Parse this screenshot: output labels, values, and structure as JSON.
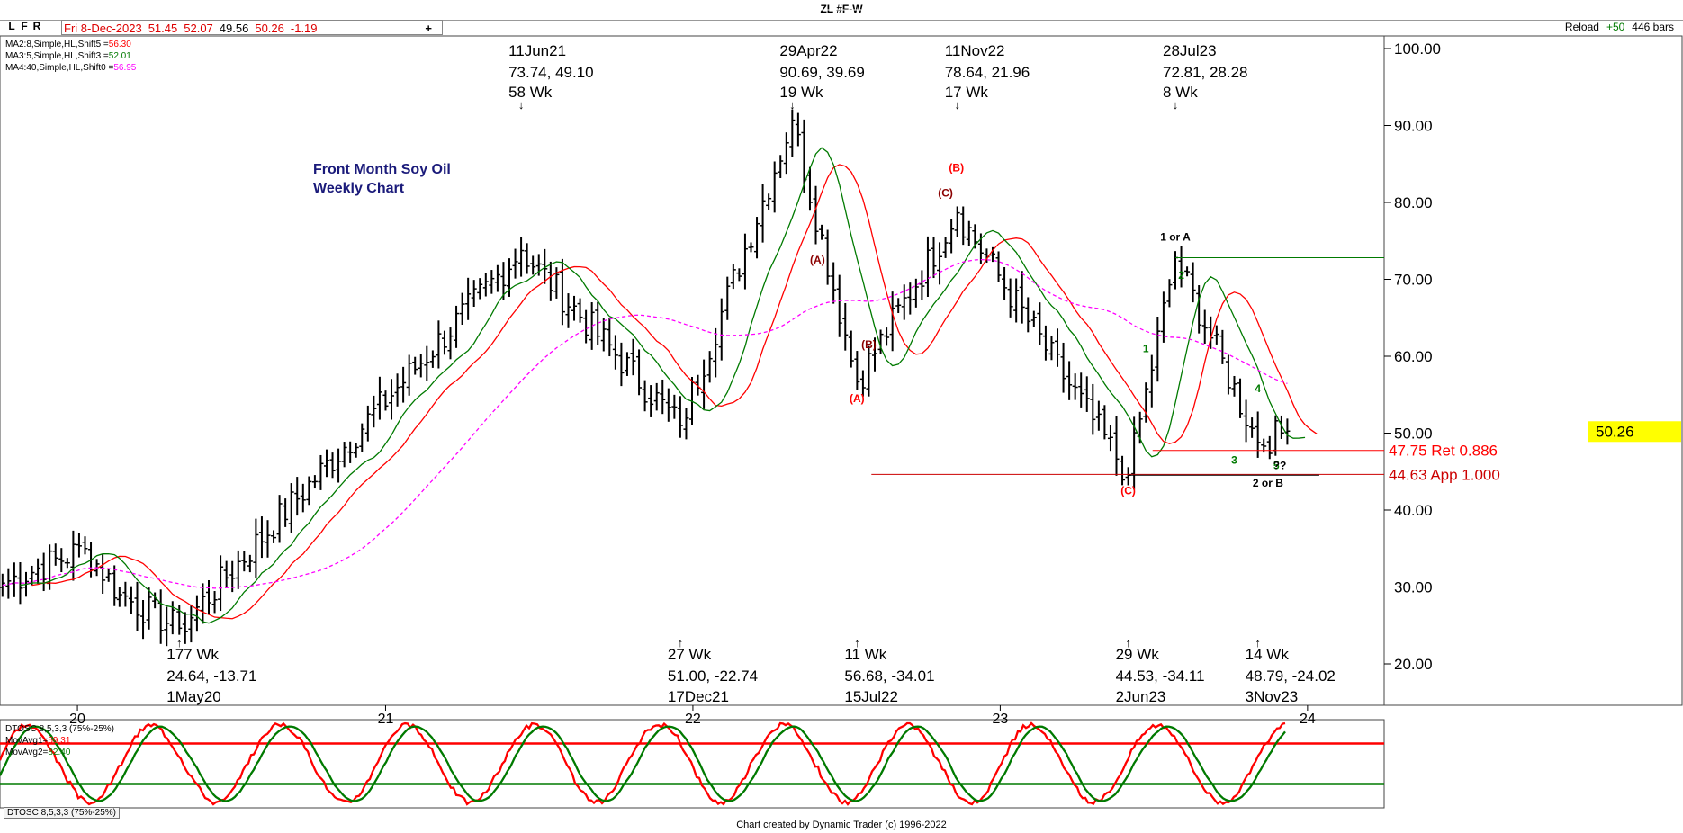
{
  "header": {
    "title": "ZL #F-W",
    "lfr": [
      "L",
      "F",
      "R"
    ],
    "quote": {
      "date": "Fri 8-Dec-2023",
      "open": "51.45",
      "high": "52.07",
      "low": "49.56",
      "close": "50.26",
      "change": "-1.19"
    },
    "reload_label": "Reload",
    "reload_value": "+50",
    "bars": "446 bars"
  },
  "ma_legend": [
    {
      "label": "MA2:8,Simple,HL,Shift5 =",
      "value": "56.30",
      "color": "#ff0000"
    },
    {
      "label": "MA3:5,Simple,HL,Shift3 =",
      "value": "52.01",
      "color": "#007a00"
    },
    {
      "label": "MA4:40,Simple,HL,Shift0 =",
      "value": "56.95",
      "color": "#ff00ff"
    }
  ],
  "chart_data": [
    {
      "type": "ohlc",
      "title": "ZL #F-W",
      "subtitle": "Front Month Soy Oil\nWeekly Chart",
      "x_tick_labels": [
        "20",
        "21",
        "22",
        "23",
        "24"
      ],
      "y_ticks": [
        "100.00",
        "90.00",
        "80.00",
        "70.00",
        "60.00",
        "50.00",
        "40.00",
        "30.00",
        "20.00"
      ],
      "ylim": [
        14,
        101
      ],
      "last_price": "50.26",
      "pivots": [
        {
          "date": "1May20",
          "price": 24.64
        },
        {
          "date": "11Jun21",
          "price": 73.74
        },
        {
          "date": "17Dec21",
          "price": 51.0
        },
        {
          "date": "29Apr22",
          "price": 90.69
        },
        {
          "date": "15Jul22",
          "price": 56.68
        },
        {
          "date": "11Nov22",
          "price": 78.64
        },
        {
          "date": "2Jun23",
          "price": 44.53
        },
        {
          "date": "28Jul23",
          "price": 72.81
        },
        {
          "date": "3Nov23",
          "price": 48.79
        },
        {
          "date": "8-Dec-2023",
          "price": 50.26
        }
      ],
      "high_annotations": [
        {
          "date": "11Jun21",
          "values": "73.74, 49.10",
          "weeks": "58 Wk"
        },
        {
          "date": "29Apr22",
          "values": "90.69, 39.69",
          "weeks": "19 Wk"
        },
        {
          "date": "11Nov22",
          "values": "78.64, 21.96",
          "weeks": "17 Wk"
        },
        {
          "date": "28Jul23",
          "values": "72.81, 28.28",
          "weeks": "8 Wk"
        }
      ],
      "low_annotations": [
        {
          "weeks": "177 Wk",
          "values": "24.64, -13.71",
          "date": "1May20"
        },
        {
          "weeks": "27 Wk",
          "values": "51.00, -22.74",
          "date": "17Dec21"
        },
        {
          "weeks": "11 Wk",
          "values": "56.68, -34.01",
          "date": "15Jul22"
        },
        {
          "weeks": "29 Wk",
          "values": "44.53, -34.11",
          "date": "2Jun23"
        },
        {
          "weeks": "14 Wk",
          "values": "48.79, -24.02",
          "date": "3Nov23"
        }
      ],
      "wave_labels": [
        {
          "text": "(A)",
          "price": 54.5,
          "color": "#ff0000"
        },
        {
          "text": "(A)",
          "price": 72.5,
          "color": "#8b0000"
        },
        {
          "text": "(B)",
          "price": 61.5,
          "color": "#8b0000"
        },
        {
          "text": "(B)",
          "price": 84.5,
          "color": "#ff0000"
        },
        {
          "text": "(C)",
          "price": 81.2,
          "color": "#8b0000"
        },
        {
          "text": "1 or A",
          "price": 75.5,
          "color": "#000000"
        },
        {
          "text": "2",
          "price": 70.5,
          "color": "#007a00"
        },
        {
          "text": "1",
          "price": 61,
          "color": "#007a00"
        },
        {
          "text": "4",
          "price": 55.8,
          "color": "#007a00"
        },
        {
          "text": "3",
          "price": 46.5,
          "color": "#007a00"
        },
        {
          "text": "5",
          "price": 45.8,
          "color": "#007a00"
        },
        {
          "text": "??",
          "price": 45.8,
          "color": "#000000"
        },
        {
          "text": "2 or B",
          "price": 43.5,
          "color": "#000000"
        },
        {
          "text": "(C)",
          "price": 42.5,
          "color": "#ff0000"
        }
      ],
      "levels": [
        {
          "price": 72.81,
          "color": "#007a00",
          "label": ""
        },
        {
          "price": 47.75,
          "color": "#ff0000",
          "label": "47.75 Ret 0.886"
        },
        {
          "price": 44.63,
          "color": "#cc0000",
          "label": "44.63 App 1.000"
        },
        {
          "price": 44.53,
          "color": "#000000",
          "label": ""
        }
      ]
    },
    {
      "type": "line",
      "title": "DTOSC 8,5,3,3 (75%-25%)",
      "ylim": [
        0,
        100
      ],
      "overbought": 75,
      "oversold": 25,
      "series": [
        {
          "name": "MovAvg1",
          "last": "59.31",
          "color": "#ff0000"
        },
        {
          "name": "MovAvg2",
          "last": "82.40",
          "color": "#007a00"
        }
      ]
    }
  ],
  "footer": "Chart created by Dynamic Trader  (c) 1996-2022"
}
